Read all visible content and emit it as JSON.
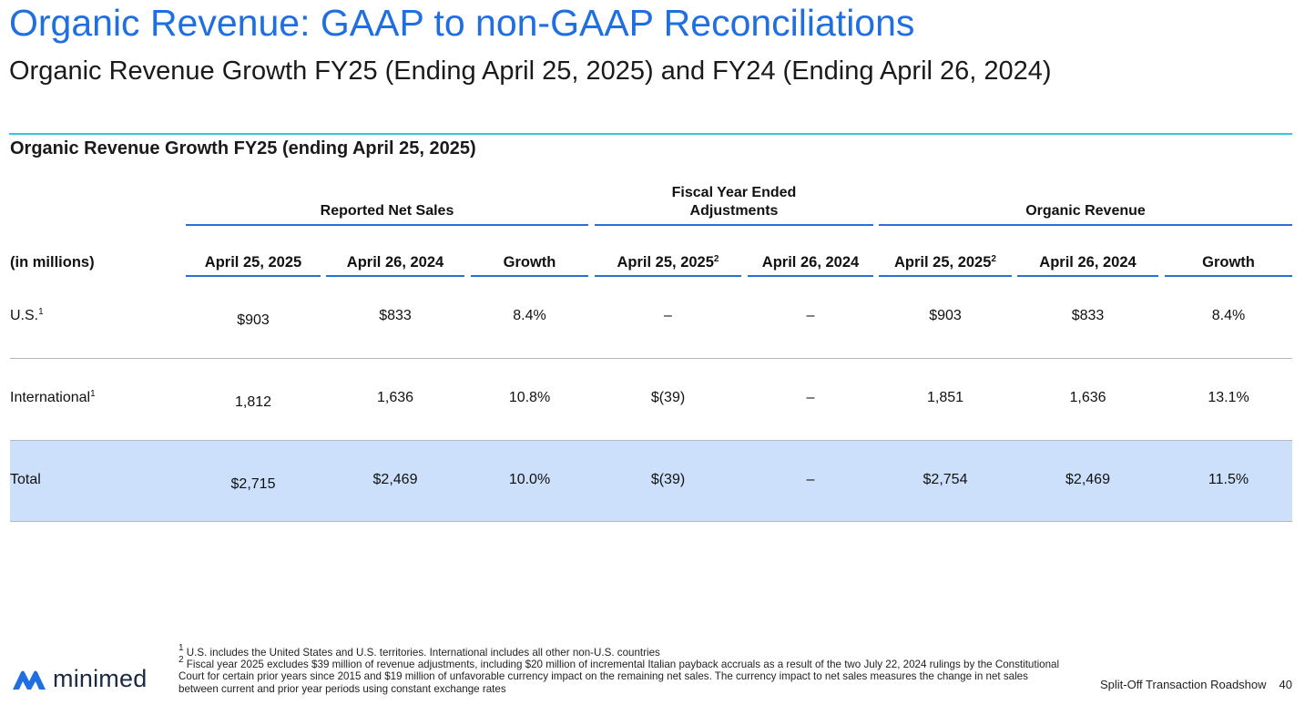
{
  "header": {
    "title": "Organic Revenue: GAAP to non-GAAP Reconciliations",
    "subtitle": "Organic Revenue Growth FY25 (Ending April 25, 2025) and FY24 (Ending April 26, 2024)",
    "section_title": "Organic Revenue Growth FY25 (ending April 25, 2025)"
  },
  "table": {
    "groups": {
      "reported": "Reported Net Sales",
      "adjustments_line1": "Fiscal Year Ended",
      "adjustments_line2": "Adjustments",
      "organic": "Organic Revenue"
    },
    "columns": {
      "unit": "(in millions)",
      "rep_2025": "April 25, 2025",
      "rep_2024": "April 26, 2024",
      "rep_growth": "Growth",
      "adj_2025": "April 25, 2025",
      "adj_2025_sup": "2",
      "adj_2024": "April 26, 2024",
      "org_2025": "April 25, 2025",
      "org_2025_sup": "2",
      "org_2024": "April 26, 2024",
      "org_growth": "Growth"
    },
    "rows": [
      {
        "label": "U.S.",
        "sup": "1",
        "rep_2025": "$903",
        "rep_2024": "$833",
        "rep_growth": "8.4%",
        "adj_2025": "–",
        "adj_2024": "–",
        "org_2025": "$903",
        "org_2024": "$833",
        "org_growth": "8.4%"
      },
      {
        "label": "International",
        "sup": "1",
        "rep_2025": "1,812",
        "rep_2024": "1,636",
        "rep_growth": "10.8%",
        "adj_2025": "$(39)",
        "adj_2024": "–",
        "org_2025": "1,851",
        "org_2024": "1,636",
        "org_growth": "13.1%"
      },
      {
        "label": "Total",
        "sup": "",
        "rep_2025": "$2,715",
        "rep_2024": "$2,469",
        "rep_growth": "10.0%",
        "adj_2025": "$(39)",
        "adj_2024": "–",
        "org_2025": "$2,754",
        "org_2024": "$2,469",
        "org_growth": "11.5%"
      }
    ]
  },
  "footnotes": {
    "note1_mark": "1",
    "note1": " U.S. includes the United States and U.S. territories. International includes all other non-U.S. countries",
    "note2_mark": "2",
    "note2": " Fiscal year 2025 excludes $39 million of revenue adjustments, including $20 million of incremental Italian payback accruals as a result of the two July 22, 2024 rulings by the Constitutional Court for certain prior years since 2015 and $19 million of unfavorable currency impact on the remaining net sales. The currency impact to net sales measures the change in net sales between current and prior year periods using constant exchange rates"
  },
  "footer": {
    "logo_text": "minimed",
    "logo_icon": "minimed-logo-icon",
    "presentation_name": "Split-Off Transaction Roadshow",
    "page_number": "40"
  },
  "colors": {
    "title_blue": "#1f6fe0",
    "rule_cyan": "#2ec8e6",
    "header_line_blue": "#2a6fd6",
    "total_row_fill": "#cce0fb",
    "logo_blue": "#1f6fe0"
  }
}
